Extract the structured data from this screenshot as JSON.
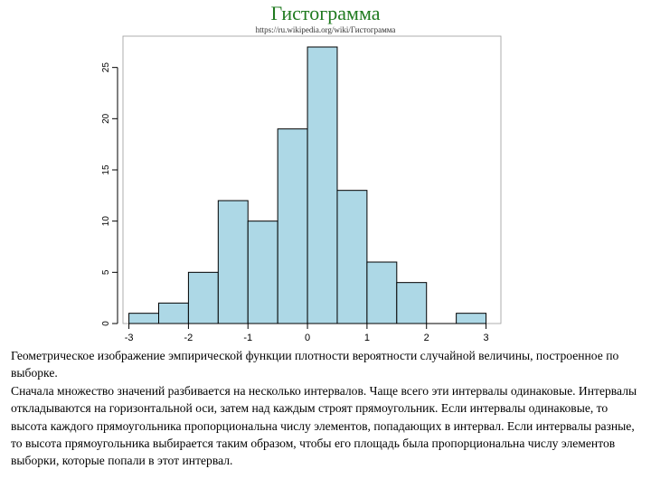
{
  "header": {
    "title": "Гистограмма",
    "source": "https://ru.wikipedia.org/wiki/Гистограмма"
  },
  "chart_data": {
    "type": "bar",
    "bin_edges": [
      -3,
      -2.5,
      -2,
      -1.5,
      -1,
      -0.5,
      0,
      0.5,
      1,
      1.5,
      2,
      2.5,
      3
    ],
    "values": [
      1,
      2,
      5,
      12,
      10,
      19,
      27,
      13,
      6,
      4,
      0,
      1
    ],
    "xticks": [
      "-3",
      "-2",
      "-1",
      "0",
      "1",
      "2",
      "3"
    ],
    "yticks": [
      "0",
      "5",
      "10",
      "15",
      "20",
      "25"
    ],
    "xlim": [
      -3.1,
      3.25
    ],
    "ylim": [
      0,
      27
    ],
    "bar_color": "#add8e6",
    "edge_color": "#000000",
    "grid": false
  },
  "description": {
    "para1": "Геометрическое изображение эмпирической функции плотности вероятности случайной величины, построенное по выборке.",
    "para2": "Сначала множество значений разбивается на несколько интервалов. Чаще всего эти интервалы одинаковые. Интервалы откладываются на горизонтальной оси, затем над каждым строят прямоугольник. Если интервалы одинаковые, то высота каждого прямоугольника пропорциональна числу элементов, попадающих в интервал. Если интервалы разные, то высота прямоугольника выбирается таким образом, чтобы его площадь была пропорциональна числу элементов выборки, которые попали в этот интервал."
  }
}
